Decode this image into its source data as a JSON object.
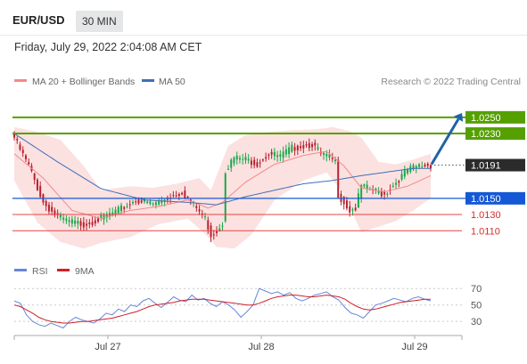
{
  "header": {
    "pair": "EUR/USD",
    "timeframe": "30 MIN",
    "datetime": "Friday, July 29, 2022 2:04:08 AM CET"
  },
  "legend": {
    "ma20": "MA 20 + Bollinger Bands",
    "ma50": "MA 50",
    "credit": "Research © 2022 Trading Central",
    "rsi": "RSI",
    "ma9": "9MA"
  },
  "colors": {
    "bull": "#18a84a",
    "bear": "#b8202e",
    "bollinger_fill": "#fbdcdc",
    "ma20": "#f28a8a",
    "ma50": "#3f6fb6",
    "resistance": "#55a000",
    "pivot": "#1558d6",
    "support": "#e64444",
    "arrow": "#1f62a8",
    "rsi": "#6686d8",
    "rsi_ma": "#d0202a"
  },
  "chart_data": [
    {
      "type": "candlestick",
      "name": "price",
      "x_labels": [
        "Jul 27",
        "Jul 28",
        "Jul 29"
      ],
      "ylim": [
        1.0085,
        1.0285
      ],
      "levels": [
        {
          "label": "1.0250",
          "value": 1.025,
          "kind": "resistance"
        },
        {
          "label": "1.0230",
          "value": 1.023,
          "kind": "resistance"
        },
        {
          "label": "1.0191",
          "value": 1.0191,
          "kind": "last"
        },
        {
          "label": "1.0150",
          "value": 1.015,
          "kind": "pivot"
        },
        {
          "label": "1.0130",
          "value": 1.013,
          "kind": "support"
        },
        {
          "label": "1.0110",
          "value": 1.011,
          "kind": "support"
        }
      ],
      "anchors": [
        [
          0,
          1.0225
        ],
        [
          2,
          1.021
        ],
        [
          5,
          1.019
        ],
        [
          10,
          1.0145
        ],
        [
          14,
          1.013
        ],
        [
          18,
          1.0122
        ],
        [
          24,
          1.0118
        ],
        [
          30,
          1.0125
        ],
        [
          36,
          1.0135
        ],
        [
          42,
          1.0148
        ],
        [
          48,
          1.0143
        ],
        [
          54,
          1.0152
        ],
        [
          58,
          1.0158
        ],
        [
          62,
          1.0142
        ],
        [
          66,
          1.0125
        ],
        [
          68,
          1.0105
        ],
        [
          70,
          1.011
        ],
        [
          72,
          1.012
        ],
        [
          73,
          1.0185
        ],
        [
          76,
          1.02
        ],
        [
          80,
          1.0198
        ],
        [
          84,
          1.0193
        ],
        [
          88,
          1.0205
        ],
        [
          92,
          1.0202
        ],
        [
          96,
          1.0212
        ],
        [
          100,
          1.0215
        ],
        [
          103,
          1.0217
        ],
        [
          106,
          1.0205
        ],
        [
          109,
          1.02
        ],
        [
          111,
          1.0195
        ],
        [
          112,
          1.0155
        ],
        [
          114,
          1.0145
        ],
        [
          116,
          1.0135
        ],
        [
          118,
          1.0138
        ],
        [
          120,
          1.0165
        ],
        [
          124,
          1.016
        ],
        [
          128,
          1.0155
        ],
        [
          132,
          1.017
        ],
        [
          136,
          1.0185
        ],
        [
          140,
          1.019
        ],
        [
          144,
          1.0191
        ]
      ],
      "ma20": [
        [
          0,
          1.0205
        ],
        [
          10,
          1.0175
        ],
        [
          20,
          1.0135
        ],
        [
          30,
          1.0125
        ],
        [
          40,
          1.0135
        ],
        [
          50,
          1.014
        ],
        [
          60,
          1.0148
        ],
        [
          67,
          1.0138
        ],
        [
          72,
          1.0145
        ],
        [
          80,
          1.017
        ],
        [
          90,
          1.0192
        ],
        [
          100,
          1.0203
        ],
        [
          108,
          1.0208
        ],
        [
          114,
          1.019
        ],
        [
          120,
          1.0163
        ],
        [
          128,
          1.0158
        ],
        [
          136,
          1.0165
        ],
        [
          144,
          1.0178
        ]
      ],
      "ma50": [
        [
          0,
          1.023
        ],
        [
          15,
          1.0195
        ],
        [
          30,
          1.0162
        ],
        [
          45,
          1.0148
        ],
        [
          60,
          1.0145
        ],
        [
          70,
          1.0142
        ],
        [
          80,
          1.0152
        ],
        [
          90,
          1.016
        ],
        [
          100,
          1.0168
        ],
        [
          110,
          1.0172
        ],
        [
          120,
          1.0178
        ],
        [
          130,
          1.0183
        ],
        [
          138,
          1.0187
        ],
        [
          144,
          1.0187
        ]
      ],
      "bb_upper": [
        [
          0,
          1.0238
        ],
        [
          8,
          1.0232
        ],
        [
          16,
          1.0222
        ],
        [
          24,
          1.019
        ],
        [
          30,
          1.016
        ],
        [
          40,
          1.0165
        ],
        [
          48,
          1.0163
        ],
        [
          56,
          1.0168
        ],
        [
          64,
          1.0175
        ],
        [
          68,
          1.016
        ],
        [
          74,
          1.0215
        ],
        [
          80,
          1.0228
        ],
        [
          88,
          1.0232
        ],
        [
          96,
          1.0234
        ],
        [
          104,
          1.0235
        ],
        [
          110,
          1.0238
        ],
        [
          116,
          1.0233
        ],
        [
          120,
          1.0225
        ],
        [
          126,
          1.0195
        ],
        [
          132,
          1.0192
        ],
        [
          138,
          1.0198
        ],
        [
          144,
          1.0205
        ]
      ],
      "bb_lower": [
        [
          0,
          1.0172
        ],
        [
          8,
          1.012
        ],
        [
          16,
          1.0096
        ],
        [
          24,
          1.0088
        ],
        [
          30,
          1.0095
        ],
        [
          40,
          1.0102
        ],
        [
          50,
          1.0118
        ],
        [
          60,
          1.0125
        ],
        [
          66,
          1.0106
        ],
        [
          70,
          1.009
        ],
        [
          76,
          1.0088
        ],
        [
          82,
          1.0105
        ],
        [
          90,
          1.0148
        ],
        [
          100,
          1.0172
        ],
        [
          108,
          1.0182
        ],
        [
          114,
          1.0155
        ],
        [
          120,
          1.0108
        ],
        [
          126,
          1.0115
        ],
        [
          132,
          1.0122
        ],
        [
          138,
          1.0135
        ],
        [
          144,
          1.015
        ]
      ]
    },
    {
      "type": "line",
      "name": "rsi-panel",
      "x_labels": [
        "Jul 27",
        "Jul 28",
        "Jul 29"
      ],
      "yticks": [
        70,
        50,
        30
      ],
      "ylim": [
        15,
        80
      ],
      "series": [
        {
          "name": "RSI",
          "values": [
            55,
            52,
            38,
            30,
            26,
            24,
            28,
            25,
            22,
            30,
            35,
            32,
            30,
            28,
            33,
            40,
            38,
            45,
            42,
            50,
            48,
            55,
            58,
            52,
            47,
            53,
            60,
            56,
            54,
            62,
            56,
            58,
            52,
            48,
            54,
            50,
            44,
            35,
            42,
            50,
            70,
            67,
            64,
            66,
            62,
            65,
            58,
            55,
            58,
            62,
            64,
            66,
            60,
            56,
            47,
            40,
            38,
            34,
            42,
            50,
            52,
            55,
            58,
            56,
            54,
            58,
            60,
            57,
            55
          ]
        },
        {
          "name": "9MA",
          "values": [
            50,
            48,
            44,
            40,
            35,
            32,
            30,
            29,
            28,
            28,
            29,
            30,
            30,
            31,
            32,
            33,
            34,
            36,
            38,
            40,
            42,
            45,
            48,
            50,
            51,
            52,
            53,
            55,
            56,
            57,
            57,
            57,
            56,
            55,
            54,
            53,
            52,
            51,
            50,
            50,
            52,
            55,
            58,
            60,
            61,
            62,
            62,
            61,
            60,
            60,
            61,
            62,
            61,
            60,
            57,
            52,
            48,
            45,
            44,
            45,
            47,
            49,
            51,
            53,
            54,
            55,
            56,
            57,
            57
          ]
        }
      ]
    }
  ]
}
